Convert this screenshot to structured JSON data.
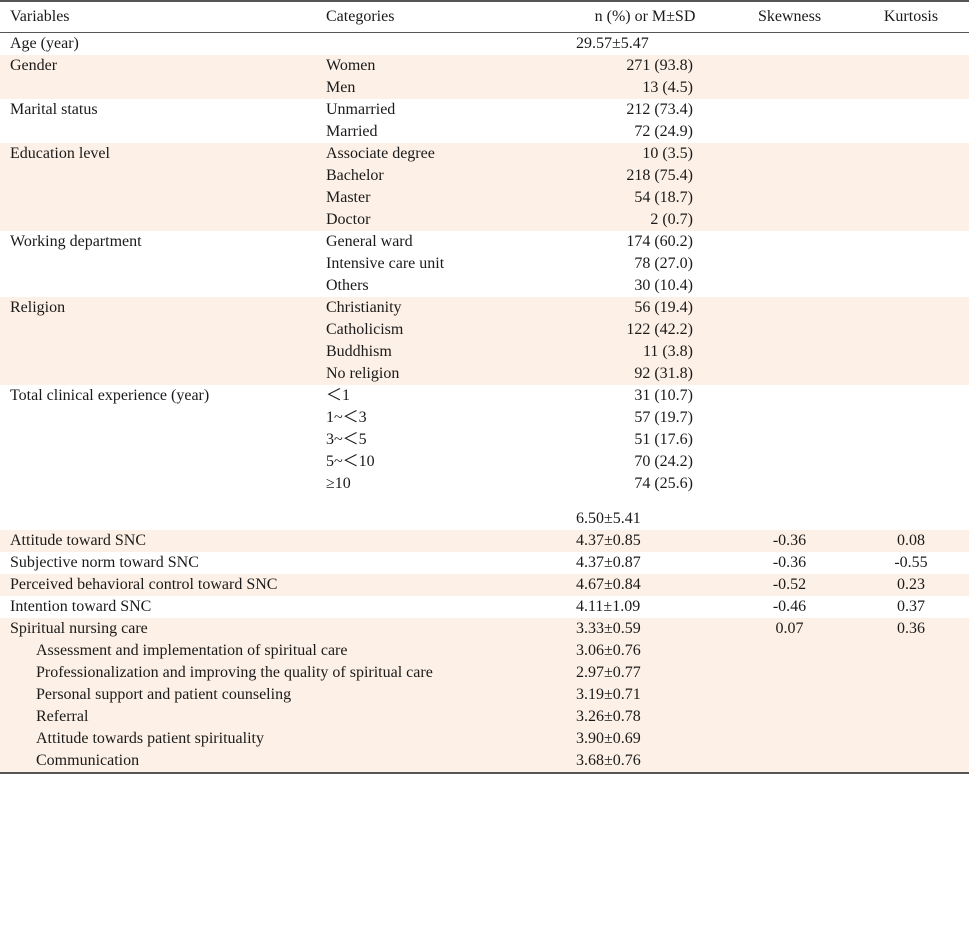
{
  "header": {
    "variables": "Variables",
    "categories": "Categories",
    "value": "n (%) or M±SD",
    "skewness": "Skewness",
    "kurtosis": "Kurtosis"
  },
  "rows": {
    "age": {
      "label": "Age (year)",
      "value": "29.57±5.47"
    },
    "gender": {
      "label": "Gender",
      "categories": [
        "Women",
        "Men"
      ],
      "values": [
        "271 (93.8)",
        "13 (4.5)"
      ]
    },
    "marital": {
      "label": "Marital status",
      "categories": [
        "Unmarried",
        "Married"
      ],
      "values": [
        "212 (73.4)",
        "72 (24.9)"
      ]
    },
    "education": {
      "label": "Education level",
      "categories": [
        "Associate degree",
        "Bachelor",
        "Master",
        "Doctor"
      ],
      "values": [
        "10 (3.5)",
        "218 (75.4)",
        "54 (18.7)",
        "2 (0.7)"
      ]
    },
    "department": {
      "label": "Working department",
      "categories": [
        "General ward",
        "Intensive care unit",
        "Others"
      ],
      "values": [
        "174 (60.2)",
        "78 (27.0)",
        "30 (10.4)"
      ]
    },
    "religion": {
      "label": "Religion",
      "categories": [
        "Christianity",
        "Catholicism",
        "Buddhism",
        "No religion"
      ],
      "values": [
        "56 (19.4)",
        "122 (42.2)",
        "11 (3.8)",
        "92 (31.8)"
      ]
    },
    "experience": {
      "label": "Total clinical experience (year)",
      "categories": [
        "＜1",
        "1~＜3",
        "3~＜5",
        "5~＜10",
        "≥10"
      ],
      "values": [
        "31 (10.7)",
        "57 (19.7)",
        "51 (17.6)",
        "70 (24.2)",
        "74 (25.6)"
      ],
      "mean": "6.50±5.41"
    },
    "attitude": {
      "label": "Attitude toward SNC",
      "value": "4.37±0.85",
      "skewness": "-0.36",
      "kurtosis": "0.08"
    },
    "subjective": {
      "label": "Subjective norm toward SNC",
      "value": "4.37±0.87",
      "skewness": "-0.36",
      "kurtosis": "-0.55"
    },
    "perceived": {
      "label": "Perceived behavioral control toward SNC",
      "value": "4.67±0.84",
      "skewness": "-0.52",
      "kurtosis": "0.23"
    },
    "intention": {
      "label": "Intention toward SNC",
      "value": "4.11±1.09",
      "skewness": "-0.46",
      "kurtosis": "0.37"
    },
    "snc": {
      "label": "Spiritual nursing care",
      "value": "3.33±0.59",
      "skewness": "0.07",
      "kurtosis": "0.36",
      "sub_labels": [
        "Assessment and implementation of spiritual care",
        "Professionalization and improving the quality of spiritual care",
        "Personal support and patient counseling",
        "Referral",
        "Attitude towards patient spirituality",
        "Communication"
      ],
      "sub_values": [
        "3.06±0.76",
        "2.97±0.77",
        "3.19±0.71",
        "3.26±0.78",
        "3.90±0.69",
        "3.68±0.76"
      ]
    }
  }
}
